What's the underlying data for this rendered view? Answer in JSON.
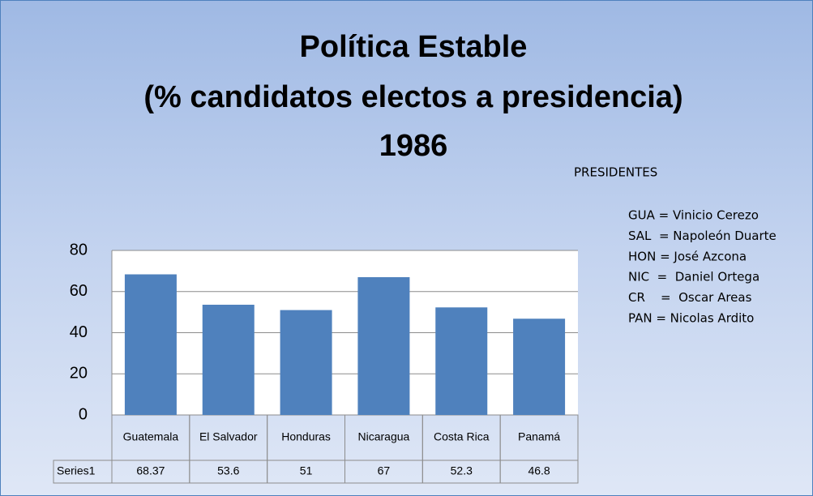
{
  "chart_data": {
    "type": "bar",
    "title": [
      "Política Estable",
      "(% candidatos electos a presidencia)",
      "1986"
    ],
    "categories": [
      "Guatemala",
      "El Salvador",
      "Honduras",
      "Nicaragua",
      "Costa Rica",
      "Panamá"
    ],
    "series": [
      {
        "name": "Series1",
        "color": "#4f81bd",
        "values": [
          68.37,
          53.6,
          51,
          67,
          52.3,
          46.8
        ]
      }
    ],
    "ylim": [
      0,
      80
    ],
    "yticks": [
      0,
      20,
      40,
      60,
      80
    ],
    "grid": true,
    "data_table": true
  },
  "presidents": {
    "title": "PRESIDENTES",
    "items": [
      "GUA = Vinicio Cerezo",
      "SAL  = Napoleón Duarte",
      "HON = José Azcona",
      "NIC  =  Daniel Ortega",
      "CR    =  Oscar Areas",
      "PAN = Nicolas Ardito"
    ]
  }
}
